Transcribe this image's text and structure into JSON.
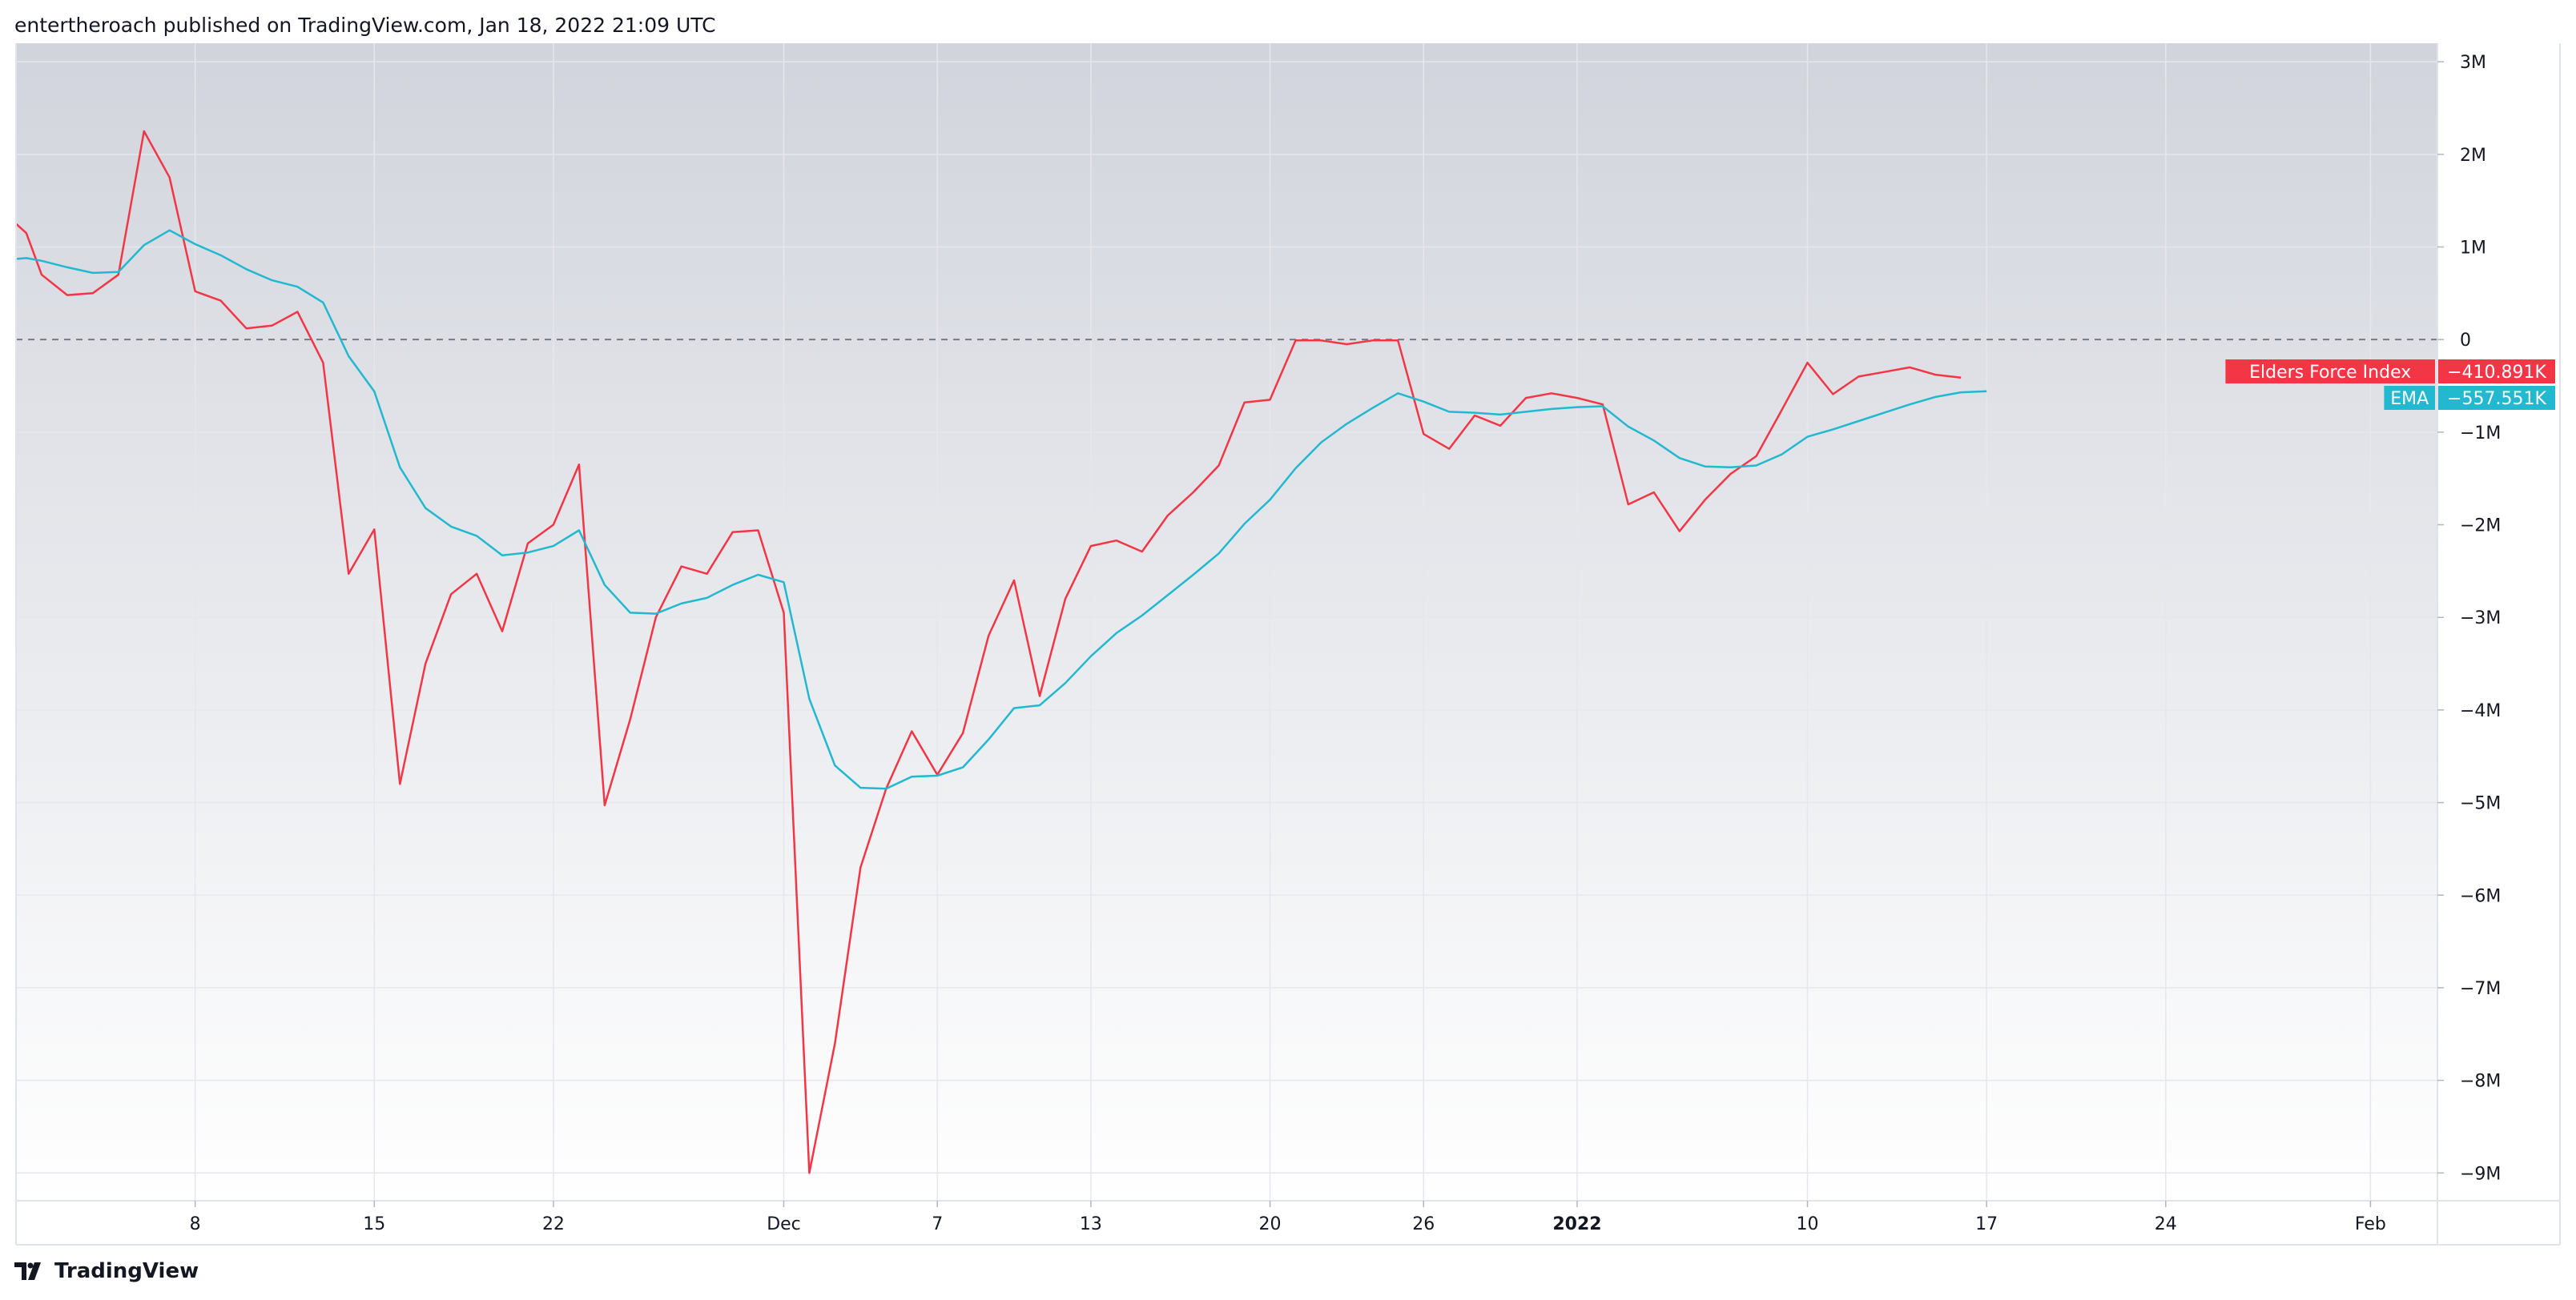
{
  "header": {
    "publish_text": "entertheroach published on TradingView.com, Jan 18, 2022 21:09 UTC"
  },
  "footer": {
    "brand_text": "TradingView",
    "logo_icon": "tradingview-logo-icon"
  },
  "colors": {
    "force_index": "#f23645",
    "ema": "#22b8cf",
    "grid": "#e6e7ec",
    "zero_line": "#787b86",
    "bg_top": "#d1d4dc",
    "bg_bottom": "#ffffff"
  },
  "chart_data": {
    "type": "line",
    "ylim": [
      -9300000,
      3200000
    ],
    "zero_line": 0,
    "y_ticks": [
      {
        "value": 3000000,
        "label": "3M"
      },
      {
        "value": 2000000,
        "label": "2M"
      },
      {
        "value": 1000000,
        "label": "1M"
      },
      {
        "value": 0,
        "label": "0"
      },
      {
        "value": -1000000,
        "label": "−1M"
      },
      {
        "value": -2000000,
        "label": "−2M"
      },
      {
        "value": -3000000,
        "label": "−3M"
      },
      {
        "value": -4000000,
        "label": "−4M"
      },
      {
        "value": -5000000,
        "label": "−5M"
      },
      {
        "value": -6000000,
        "label": "−6M"
      },
      {
        "value": -7000000,
        "label": "−7M"
      },
      {
        "value": -8000000,
        "label": "−8M"
      },
      {
        "value": -9000000,
        "label": "−9M"
      }
    ],
    "x_ticks": [
      {
        "x": 7,
        "label": "8"
      },
      {
        "x": 14,
        "label": "15"
      },
      {
        "x": 21,
        "label": "22"
      },
      {
        "x": 30,
        "label": "Dec"
      },
      {
        "x": 36,
        "label": "7"
      },
      {
        "x": 42,
        "label": "13"
      },
      {
        "x": 49,
        "label": "20"
      },
      {
        "x": 55,
        "label": "26"
      },
      {
        "x": 61,
        "label": "2022",
        "bold": true
      },
      {
        "x": 70,
        "label": "10"
      },
      {
        "x": 77,
        "label": "17"
      },
      {
        "x": 84,
        "label": "24"
      },
      {
        "x": 92,
        "label": "Feb"
      }
    ],
    "series": [
      {
        "name": "Elders Force Index",
        "last_value": "−410.891K",
        "points": [
          [
            0,
            1250000
          ],
          [
            0.4,
            1150000
          ],
          [
            1,
            700000
          ],
          [
            2,
            480000
          ],
          [
            3,
            500000
          ],
          [
            4,
            700000
          ],
          [
            5,
            2250000
          ],
          [
            6,
            1750000
          ],
          [
            7,
            520000
          ],
          [
            8,
            420000
          ],
          [
            9,
            120000
          ],
          [
            10,
            150000
          ],
          [
            11,
            300000
          ],
          [
            12,
            -250000
          ],
          [
            13,
            -2530000
          ],
          [
            14,
            -2050000
          ],
          [
            15,
            -4800000
          ],
          [
            16,
            -3500000
          ],
          [
            17,
            -2750000
          ],
          [
            18,
            -2530000
          ],
          [
            19,
            -3150000
          ],
          [
            20,
            -2200000
          ],
          [
            21,
            -2000000
          ],
          [
            22,
            -1350000
          ],
          [
            23,
            -5030000
          ],
          [
            24,
            -4100000
          ],
          [
            25,
            -3000000
          ],
          [
            26,
            -2450000
          ],
          [
            27,
            -2530000
          ],
          [
            28,
            -2080000
          ],
          [
            29,
            -2060000
          ],
          [
            30,
            -2950000
          ],
          [
            31,
            -9000000
          ],
          [
            32,
            -7600000
          ],
          [
            33,
            -5700000
          ],
          [
            34,
            -4850000
          ],
          [
            35,
            -4230000
          ],
          [
            36,
            -4700000
          ],
          [
            37,
            -4250000
          ],
          [
            38,
            -3200000
          ],
          [
            39,
            -2600000
          ],
          [
            40,
            -3850000
          ],
          [
            41,
            -2800000
          ],
          [
            42,
            -2230000
          ],
          [
            43,
            -2170000
          ],
          [
            44,
            -2290000
          ],
          [
            45,
            -1900000
          ],
          [
            46,
            -1650000
          ],
          [
            47,
            -1360000
          ],
          [
            48,
            -680000
          ],
          [
            49,
            -650000
          ],
          [
            50,
            -10000
          ],
          [
            51,
            -10000
          ],
          [
            52,
            -50000
          ],
          [
            53,
            -10000
          ],
          [
            54,
            -10000
          ],
          [
            55,
            -1020000
          ],
          [
            56,
            -1180000
          ],
          [
            57,
            -820000
          ],
          [
            58,
            -930000
          ],
          [
            59,
            -630000
          ],
          [
            60,
            -580000
          ],
          [
            61,
            -630000
          ],
          [
            62,
            -700000
          ],
          [
            63,
            -1780000
          ],
          [
            64,
            -1650000
          ],
          [
            65,
            -2070000
          ],
          [
            66,
            -1730000
          ],
          [
            67,
            -1450000
          ],
          [
            68,
            -1260000
          ],
          [
            69,
            -760000
          ],
          [
            70,
            -250000
          ],
          [
            71,
            -590000
          ],
          [
            72,
            -400000
          ],
          [
            73,
            -350000
          ],
          [
            74,
            -300000
          ],
          [
            75,
            -380000
          ],
          [
            76,
            -410891
          ]
        ]
      },
      {
        "name": "EMA",
        "last_value": "−557.551K",
        "points": [
          [
            0,
            870000
          ],
          [
            0.4,
            880000
          ],
          [
            1,
            850000
          ],
          [
            2,
            780000
          ],
          [
            3,
            720000
          ],
          [
            4,
            730000
          ],
          [
            5,
            1020000
          ],
          [
            6,
            1180000
          ],
          [
            7,
            1030000
          ],
          [
            8,
            910000
          ],
          [
            9,
            760000
          ],
          [
            10,
            640000
          ],
          [
            11,
            570000
          ],
          [
            12,
            400000
          ],
          [
            13,
            -180000
          ],
          [
            14,
            -560000
          ],
          [
            15,
            -1380000
          ],
          [
            16,
            -1820000
          ],
          [
            17,
            -2020000
          ],
          [
            18,
            -2120000
          ],
          [
            19,
            -2330000
          ],
          [
            20,
            -2300000
          ],
          [
            21,
            -2230000
          ],
          [
            22,
            -2060000
          ],
          [
            23,
            -2650000
          ],
          [
            24,
            -2950000
          ],
          [
            25,
            -2960000
          ],
          [
            26,
            -2850000
          ],
          [
            27,
            -2790000
          ],
          [
            28,
            -2650000
          ],
          [
            29,
            -2540000
          ],
          [
            30,
            -2620000
          ],
          [
            31,
            -3880000
          ],
          [
            32,
            -4600000
          ],
          [
            33,
            -4840000
          ],
          [
            34,
            -4850000
          ],
          [
            35,
            -4720000
          ],
          [
            36,
            -4710000
          ],
          [
            37,
            -4620000
          ],
          [
            38,
            -4320000
          ],
          [
            39,
            -3980000
          ],
          [
            40,
            -3950000
          ],
          [
            41,
            -3710000
          ],
          [
            42,
            -3420000
          ],
          [
            43,
            -3170000
          ],
          [
            44,
            -2980000
          ],
          [
            45,
            -2760000
          ],
          [
            46,
            -2540000
          ],
          [
            47,
            -2310000
          ],
          [
            48,
            -1990000
          ],
          [
            49,
            -1730000
          ],
          [
            50,
            -1390000
          ],
          [
            51,
            -1110000
          ],
          [
            52,
            -910000
          ],
          [
            53,
            -740000
          ],
          [
            54,
            -580000
          ],
          [
            55,
            -670000
          ],
          [
            56,
            -780000
          ],
          [
            57,
            -790000
          ],
          [
            58,
            -810000
          ],
          [
            59,
            -780000
          ],
          [
            60,
            -750000
          ],
          [
            61,
            -730000
          ],
          [
            62,
            -720000
          ],
          [
            63,
            -940000
          ],
          [
            64,
            -1090000
          ],
          [
            65,
            -1280000
          ],
          [
            66,
            -1370000
          ],
          [
            67,
            -1380000
          ],
          [
            68,
            -1360000
          ],
          [
            69,
            -1240000
          ],
          [
            70,
            -1050000
          ],
          [
            71,
            -970000
          ],
          [
            72,
            -880000
          ],
          [
            73,
            -790000
          ],
          [
            74,
            -700000
          ],
          [
            75,
            -620000
          ],
          [
            76,
            -570000
          ],
          [
            77,
            -557551
          ]
        ]
      }
    ]
  }
}
